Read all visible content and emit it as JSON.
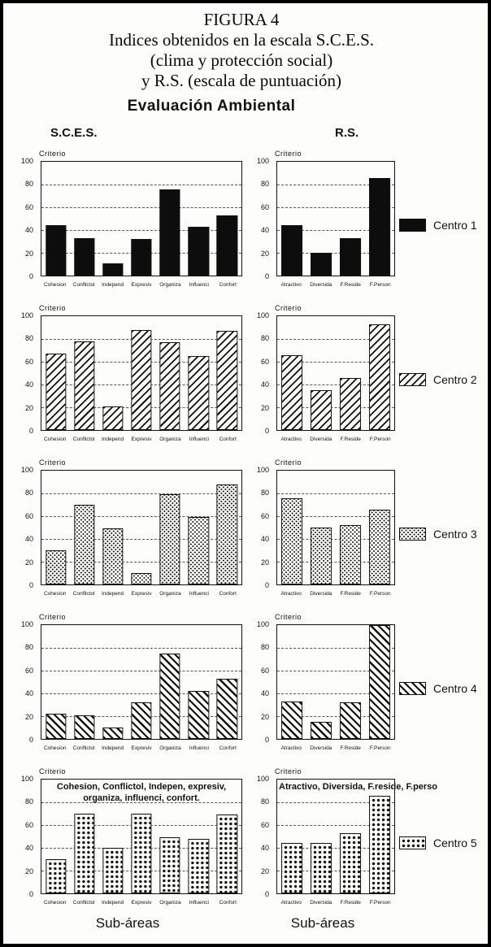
{
  "figure": {
    "title_lines": [
      "FIGURA 4",
      "Indices obtenidos en la escala S.C.E.S.",
      "(clima y protección social)",
      "y R.S. (escala de puntuación)"
    ],
    "subtitle": "Evaluación Ambiental",
    "col_left_header": "S.C.E.S.",
    "col_right_header": "R.S.",
    "footer_left": "Sub-áreas",
    "footer_right": "Sub-áreas"
  },
  "colors": {
    "ink": "#111111",
    "paper": "#fdfdfb"
  },
  "legends": [
    {
      "label": "Centro 1",
      "pattern": "solid"
    },
    {
      "label": "Centro 2",
      "pattern": "hatch-fwd"
    },
    {
      "label": "Centro 3",
      "pattern": "dots-light"
    },
    {
      "label": "Centro 4",
      "pattern": "hatch-back"
    },
    {
      "label": "Centro 5",
      "pattern": "dots-heavy"
    }
  ],
  "chart_data": [
    {
      "id": "centro1-sces",
      "type": "bar",
      "panel": "S.C.E.S.",
      "series_name": "Centro 1",
      "pattern": "solid",
      "ylabel": "Criterio",
      "ylim": [
        0,
        100
      ],
      "yticks": [
        0,
        20,
        40,
        60,
        80,
        100
      ],
      "grid": "dashed-horizontal",
      "categories": [
        "Cohesion",
        "Conflictol",
        "Independ",
        "Expresiv",
        "Organiza",
        "Influenci",
        "Confort"
      ],
      "values": [
        44,
        33,
        11,
        32,
        76,
        43,
        53
      ]
    },
    {
      "id": "centro1-rs",
      "type": "bar",
      "panel": "R.S.",
      "series_name": "Centro 1",
      "pattern": "solid",
      "ylabel": "Criterio",
      "ylim": [
        0,
        100
      ],
      "yticks": [
        0,
        20,
        40,
        60,
        80,
        100
      ],
      "grid": "dashed-horizontal",
      "categories": [
        "Atractivo",
        "Diversida",
        "F.Reside",
        "F.Person"
      ],
      "values": [
        44,
        20,
        33,
        86
      ]
    },
    {
      "id": "centro2-sces",
      "type": "bar",
      "panel": "S.C.E.S.",
      "series_name": "Centro 2",
      "pattern": "hatch-fwd",
      "ylabel": "Criterio",
      "ylim": [
        0,
        100
      ],
      "yticks": [
        0,
        20,
        40,
        60,
        80,
        100
      ],
      "grid": "dashed-horizontal",
      "categories": [
        "Cohesion",
        "Conflictol",
        "Independ",
        "Expresiv",
        "Organiza",
        "Influenci",
        "Confort"
      ],
      "values": [
        67,
        78,
        21,
        88,
        77,
        65,
        87
      ]
    },
    {
      "id": "centro2-rs",
      "type": "bar",
      "panel": "R.S.",
      "series_name": "Centro 2",
      "pattern": "hatch-fwd",
      "ylabel": "Criterio",
      "ylim": [
        0,
        100
      ],
      "yticks": [
        0,
        20,
        40,
        60,
        80,
        100
      ],
      "grid": "dashed-horizontal",
      "categories": [
        "Atractivo",
        "Diversida",
        "F.Reside",
        "F.Person"
      ],
      "values": [
        66,
        35,
        46,
        93
      ]
    },
    {
      "id": "centro3-sces",
      "type": "bar",
      "panel": "S.C.E.S.",
      "series_name": "Centro 3",
      "pattern": "dots-light",
      "ylabel": "Criterio",
      "ylim": [
        0,
        100
      ],
      "yticks": [
        0,
        20,
        40,
        60,
        80,
        100
      ],
      "grid": "dashed-horizontal",
      "categories": [
        "Cohesion",
        "Conflictol",
        "Independ",
        "Expresiv",
        "Organiza",
        "Influenci",
        "Confort"
      ],
      "values": [
        30,
        70,
        49,
        10,
        79,
        59,
        88
      ]
    },
    {
      "id": "centro3-rs",
      "type": "bar",
      "panel": "R.S.",
      "series_name": "Centro 3",
      "pattern": "dots-light",
      "ylabel": "Criterio",
      "ylim": [
        0,
        100
      ],
      "yticks": [
        0,
        20,
        40,
        60,
        80,
        100
      ],
      "grid": "dashed-horizontal",
      "categories": [
        "Atractivo",
        "Diversida",
        "F.Reside",
        "F.Person"
      ],
      "values": [
        76,
        50,
        52,
        66
      ]
    },
    {
      "id": "centro4-sces",
      "type": "bar",
      "panel": "S.C.E.S.",
      "series_name": "Centro 4",
      "pattern": "hatch-back",
      "ylabel": "Criterio",
      "ylim": [
        0,
        100
      ],
      "yticks": [
        0,
        20,
        40,
        60,
        80,
        100
      ],
      "grid": "dashed-horizontal",
      "categories": [
        "Cohesion",
        "Conflictol",
        "Independ",
        "Expresiv",
        "Organiza",
        "Influenci",
        "Confort"
      ],
      "values": [
        22,
        21,
        10,
        32,
        75,
        42,
        53
      ]
    },
    {
      "id": "centro4-rs",
      "type": "bar",
      "panel": "R.S.",
      "series_name": "Centro 4",
      "pattern": "hatch-back",
      "ylabel": "Criterio",
      "ylim": [
        0,
        100
      ],
      "yticks": [
        0,
        20,
        40,
        60,
        80,
        100
      ],
      "grid": "dashed-horizontal",
      "categories": [
        "Atractivo",
        "Diversida",
        "F.Reside",
        "F.Person"
      ],
      "values": [
        33,
        15,
        32,
        100
      ]
    },
    {
      "id": "centro5-sces",
      "type": "bar",
      "panel": "S.C.E.S.",
      "series_name": "Centro 5",
      "pattern": "dots-heavy",
      "ylabel": "Criterio",
      "ylim": [
        0,
        100
      ],
      "yticks": [
        0,
        20,
        40,
        60,
        80,
        100
      ],
      "grid": "dashed-horizontal",
      "categories": [
        "Cohesion",
        "Conflictol",
        "Independ",
        "Expresiv",
        "Organiza",
        "Influenci",
        "Confort"
      ],
      "values": [
        30,
        70,
        40,
        70,
        49,
        48,
        69
      ],
      "annotation": "Cohesion, Conflictol, Indepen, expresiv, organiza, influenci, confort.",
      "annotation_align": "center"
    },
    {
      "id": "centro5-rs",
      "type": "bar",
      "panel": "R.S.",
      "series_name": "Centro 5",
      "pattern": "dots-heavy",
      "ylabel": "Criterio",
      "ylim": [
        0,
        100
      ],
      "yticks": [
        0,
        20,
        40,
        60,
        80,
        100
      ],
      "grid": "dashed-horizontal",
      "categories": [
        "Atractivo",
        "Diversida",
        "F.Reside",
        "F.Person"
      ],
      "values": [
        44,
        44,
        53,
        86
      ],
      "annotation": "Atractivo, Diversida, F.reside, F.perso",
      "annotation_align": "left"
    }
  ]
}
